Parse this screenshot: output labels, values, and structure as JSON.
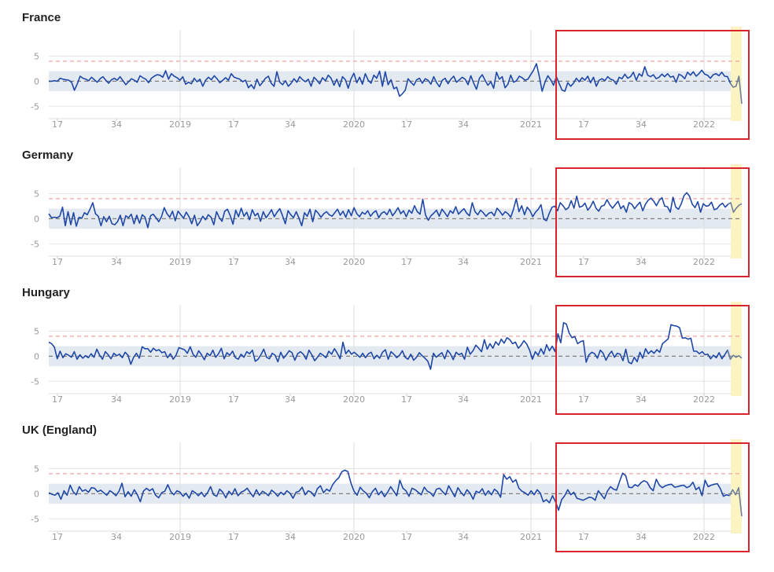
{
  "chart_data": [
    {
      "type": "line",
      "title": "France",
      "yticks": [
        5,
        0,
        -5
      ],
      "ylim": [
        -7,
        9
      ],
      "xticks": [
        "17",
        "34",
        "2019",
        "17",
        "34",
        "2020",
        "17",
        "34",
        "2021",
        "17",
        "34",
        "2022"
      ],
      "threshold_upper": 4,
      "baseline": 0,
      "band": [
        -2,
        2
      ],
      "highlight_color": "#d9232d",
      "series": [
        {
          "values": [
            0,
            0,
            0.1,
            0,
            0.6,
            0.4,
            0.3,
            0.2,
            -0.2,
            -1.8,
            -0.5,
            1,
            0.6,
            0.4,
            0.1,
            0.8,
            0.3,
            -0.2,
            0.5,
            0.9,
            0.2,
            -0.4,
            0.3,
            0.6,
            0.2,
            0.9,
            0.1,
            -0.7,
            -0.1,
            0.5,
            0.2,
            -0.2,
            1.1,
            0.7,
            0.4,
            -0.3,
            0.6,
            1,
            1.3,
            1.2,
            0.8,
            2.1,
            0.4,
            1.5,
            1,
            0.7,
            0.2,
            0.9,
            -0.6,
            -0.2,
            -0.5,
            0.6,
            -0.1,
            0.4,
            -1,
            0.2,
            0.8,
            0.3,
            1.1,
            0.5,
            -0.3,
            0.2,
            0.7,
            0.2,
            1.5,
            0.8,
            0.6,
            0.4,
            -0.1,
            0.2,
            -1.3,
            -0.7,
            -1.5,
            0.4,
            -0.9,
            -0.2,
            0.6,
            1,
            -0.4,
            -1,
            1.9,
            -0.2,
            -0.7,
            0.1,
            -1,
            -0.4,
            0.5,
            -0.2,
            0.9,
            0.3,
            -0.1,
            0.4,
            -1,
            0.8,
            0.2,
            -0.5,
            0.7,
            0.1,
            1.2,
            0.6,
            -0.8,
            0.4,
            -1.1,
            0.9,
            0.3,
            -1.4,
            0.5,
            1.6,
            -0.3,
            0.8,
            -0.6,
            1.5,
            0.2,
            -0.4,
            1.2,
            0.6,
            2,
            -1,
            1.9,
            -0.7,
            0.3,
            -1.5,
            -1.2,
            -3,
            -2.5,
            -1.8,
            0.5,
            -0.2,
            -0.8,
            0.3,
            0.6,
            -0.4,
            0.5,
            0.2,
            -0.6,
            0.9,
            -0.3,
            -1.1,
            0.2,
            0.6,
            -0.5,
            0.4,
            1,
            -0.2,
            0.3,
            0.8,
            0.4,
            -0.7,
            1.1,
            -0.4,
            -1.6,
            0.6,
            1.3,
            0.2,
            -0.8,
            -0.1,
            -1.4,
            1.8,
            0.4,
            0.9,
            -1.3,
            -0.6,
            1.2,
            -0.2,
            0.1,
            1,
            0.7,
            0.2,
            0.4,
            1.3,
            2.2,
            3.5,
            1,
            -2,
            -0.2,
            1.1,
            0.3,
            -0.8,
            0.9,
            -0.5,
            -1.8,
            -2,
            -0.3,
            -1,
            -0.4,
            0.6,
            -0.1,
            0.7,
            0.2,
            1,
            -0.3,
            0.8,
            -1,
            0.2,
            0.5,
            0.1,
            0.9,
            0.4,
            0.2,
            -0.6,
            0.8,
            0.5,
            1.4,
            0.6,
            0.9,
            1.8,
            0.2,
            1.5,
            1,
            2.9,
            1.2,
            0.9,
            1.3,
            0.5,
            0.8,
            1.4,
            0.9,
            1.5,
            0.8,
            1,
            -0.2,
            1.4,
            1.1,
            0.5,
            1.8,
            1.2,
            1.9,
            1,
            1.5,
            2.2,
            1.4,
            1.2,
            0.6,
            1.3,
            1.5,
            1.1,
            1.8,
            1,
            0.9,
            -0.4,
            -1.2,
            -1,
            1,
            -4.5
          ]
        }
      ]
    },
    {
      "type": "line",
      "title": "Germany",
      "yticks": [
        5,
        0,
        -5
      ],
      "ylim": [
        -7,
        9
      ],
      "xticks": [
        "17",
        "34",
        "2019",
        "17",
        "34",
        "2020",
        "17",
        "34",
        "2021",
        "17",
        "34",
        "2022"
      ],
      "threshold_upper": 4,
      "baseline": 0,
      "band": [
        -2,
        2
      ],
      "highlight_color": "#d9232d",
      "series": [
        {
          "values": [
            1,
            0.2,
            0.3,
            0.2,
            0.5,
            2.3,
            -1.4,
            1.4,
            -1.2,
            1.2,
            -1.5,
            0.3,
            0.1,
            1.2,
            0.8,
            1.9,
            3.2,
            1,
            0.5,
            -1.4,
            0.4,
            -0.6,
            0.5,
            -1,
            -1.2,
            -0.6,
            0.7,
            -1.4,
            0.6,
            0.2,
            0.9,
            -1,
            0.7,
            -0.9,
            0.8,
            0.3,
            -1.8,
            0.6,
            0.9,
            0.2,
            -0.6,
            0.4,
            2.2,
            1,
            0.3,
            1.5,
            -0.4,
            1.5,
            0.8,
            0.1,
            1.3,
            0.4,
            -1,
            0.7,
            -1.4,
            -0.6,
            0.5,
            -0.2,
            0.8,
            0.3,
            -1.2,
            1.4,
            0.2,
            -0.5,
            1.5,
            1.9,
            0.6,
            -1.1,
            1.7,
            0.4,
            2.1,
            0.5,
            1.3,
            -0.2,
            1.8,
            0.6,
            1.1,
            -0.5,
            1.4,
            0.2,
            0.9,
            1.8,
            0.4,
            1.3,
            2,
            0.6,
            -1,
            1.6,
            0.8,
            0.2,
            1.4,
            0.1,
            -1.4,
            1.2,
            0.5,
            1.9,
            -0.6,
            1.7,
            1.1,
            0.3,
            1,
            1.4,
            0.8,
            0.5,
            1.2,
            1.9,
            0.7,
            1.5,
            0.3,
            1.8,
            0.6,
            2.2,
            1,
            0.4,
            1.3,
            0.9,
            1.6,
            0.5,
            1.2,
            1.6,
            0.2,
            1.1,
            1.4,
            0.8,
            1.9,
            0.6,
            1.3,
            2.2,
            1,
            1.6,
            0.4,
            1.7,
            1.1,
            2.6,
            1.4,
            0.9,
            3.9,
            0.7,
            -0.3,
            0.6,
            1.1,
            1.7,
            0.5,
            1.9,
            1.2,
            0.4,
            1.6,
            1.1,
            2.4,
            0.9,
            1.5,
            2,
            1.1,
            0.6,
            3.2,
            1.4,
            0.8,
            1.7,
            1.2,
            0.5,
            1.1,
            1.3,
            0.6,
            2.1,
            1.5,
            0.7,
            1.4,
            1,
            0.3,
            1.9,
            4,
            1.4,
            2.6,
            0.8,
            2.3,
            1.6,
            0.4,
            1.3,
            1.9,
            2.8,
            -0.1,
            -0.4,
            1.1,
            2.3,
            2.5,
            1.6,
            3.2,
            2.6,
            1.8,
            2.2,
            3.6,
            2.1,
            4.5,
            2.3,
            2.5,
            3.1,
            1.7,
            2.4,
            3.5,
            2.1,
            1.5,
            2.5,
            2.7,
            3.8,
            2.8,
            2.1,
            2.8,
            3.5,
            2,
            2.6,
            1.3,
            3.2,
            2.9,
            2,
            2.7,
            3.3,
            1.6,
            2.9,
            3.7,
            4.1,
            3.5,
            2.6,
            3.7,
            4.2,
            2.5,
            2.4,
            1.3,
            4.3,
            2.3,
            1.9,
            3,
            4.6,
            5.2,
            4.5,
            2.9,
            2.2,
            3.4,
            1.3,
            3,
            2.5,
            2.6,
            3.3,
            1.8,
            2,
            2.7,
            3.1,
            2.3,
            2.9,
            3.2,
            1.3,
            2.1,
            2.7,
            3
          ]
        }
      ]
    },
    {
      "type": "line",
      "title": "Hungary",
      "yticks": [
        5,
        0,
        -5
      ],
      "ylim": [
        -7,
        9
      ],
      "xticks": [
        "17",
        "34",
        "2019",
        "17",
        "34",
        "2020",
        "17",
        "34",
        "2021",
        "17",
        "34",
        "2022"
      ],
      "threshold_upper": 4,
      "baseline": 0,
      "band": [
        -2,
        2
      ],
      "highlight_color": "#d9232d",
      "series": [
        {
          "values": [
            2.8,
            2.5,
            1.8,
            -0.5,
            1,
            -0.3,
            0.5,
            0.2,
            -0.2,
            0.9,
            -0.6,
            0.3,
            -0.4,
            0.1,
            -0.3,
            0.5,
            -0.2,
            1.4,
            0.2,
            -0.6,
            0.9,
            0.3,
            -0.5,
            0.6,
            0.1,
            0.4,
            -0.3,
            0.8,
            0.2,
            -1.6,
            -0.2,
            0.6,
            -0.4,
            1.9,
            1.5,
            1.5,
            0.8,
            1.6,
            1.1,
            1.3,
            0.7,
            0.9,
            -0.3,
            0.5,
            -0.6,
            0.2,
            1.7,
            1.5,
            1.3,
            0.6,
            1.9,
            0.4,
            -0.2,
            1.1,
            0.3,
            -0.7,
            0.6,
            0.1,
            1.2,
            -0.2,
            0.5,
            1.6,
            -0.5,
            0.7,
            0.2,
            1,
            -0.3,
            -0.6,
            0.4,
            -0.2,
            0.9,
            0.5,
            1.2,
            -1,
            -0.6,
            0.3,
            1.4,
            -0.2,
            -0.5,
            0.6,
            0.2,
            -1.1,
            0.8,
            -0.4,
            0.3,
            1.1,
            0.7,
            -0.8,
            0.5,
            0.9,
            0.4,
            -0.6,
            1.2,
            0.3,
            -0.9,
            -0.2,
            0.6,
            0.2,
            -0.3,
            1,
            0.4,
            1.5,
            0.6,
            -0.5,
            2.8,
            0.5,
            1.2,
            0.4,
            0.8,
            0.3,
            -0.2,
            0.6,
            -0.3,
            0.5,
            0.8,
            -0.5,
            0.2,
            -0.4,
            0.8,
            1.3,
            -0.6,
            0.9,
            0.4,
            -0.3,
            0.2,
            1.1,
            -0.2,
            -0.6,
            0.4,
            -0.8,
            -0.2,
            0.7,
            0.1,
            -0.4,
            -1,
            -2.6,
            0.6,
            -0.2,
            0.3,
            0.7,
            -0.5,
            1.2,
            0.5,
            -0.7,
            0.8,
            0.3,
            0.6,
            -0.6,
            1.8,
            0.4,
            1.1,
            2.2,
            1.6,
            0.9,
            3.3,
            1.4,
            2.5,
            1.6,
            2.9,
            2.2,
            3.4,
            2.6,
            3.7,
            3.3,
            2.5,
            2.8,
            1.6,
            2.2,
            3.1,
            2.4,
            1.2,
            -0.6,
            0.9,
            0.2,
            1.5,
            0.4,
            2.3,
            1.1,
            2,
            0.9,
            4.5,
            2.7,
            6.7,
            6.4,
            4.6,
            3.7,
            3.9,
            2.5,
            2.9,
            3.1,
            -1.2,
            0.3,
            0.8,
            0.5,
            -0.4,
            1.2,
            0.6,
            -0.8,
            0.3,
            1,
            -0.2,
            0.6,
            0.4,
            -0.9,
            1.4,
            -1.2,
            -1.5,
            -0.2,
            -1.1,
            0.8,
            -0.4,
            1.5,
            0.5,
            1.1,
            0.6,
            1.3,
            0.8,
            2.5,
            3,
            3.5,
            6.3,
            6.1,
            6,
            5.7,
            3.6,
            3.7,
            3.4,
            3.6,
            1,
            1,
            0.5,
            0.9,
            0.3,
            0.4,
            -0.5,
            0.2,
            -0.3,
            0.7,
            -0.5,
            0.3,
            1.2,
            -0.6,
            0.2,
            -0.2,
            0.1,
            -0.4
          ]
        }
      ]
    },
    {
      "type": "line",
      "title": "UK (England)",
      "yticks": [
        5,
        0,
        -5
      ],
      "ylim": [
        -7,
        9
      ],
      "xticks": [
        "17",
        "34",
        "2019",
        "17",
        "34",
        "2020",
        "17",
        "34",
        "2021",
        "17",
        "34",
        "2022"
      ],
      "threshold_upper": 4,
      "baseline": 0,
      "band": [
        -2,
        2
      ],
      "highlight_color": "#d9232d",
      "series": [
        {
          "values": [
            0.2,
            -0.1,
            -0.3,
            0.2,
            -1.1,
            0.6,
            -0.3,
            1.7,
            0.4,
            -0.2,
            1.4,
            0.5,
            0.8,
            0.3,
            1.2,
            1.1,
            0.4,
            0.7,
            0.2,
            -0.3,
            0.6,
            0.2,
            -0.4,
            0.5,
            2.1,
            -0.6,
            0.4,
            -0.5,
            0.8,
            -0.2,
            -1.6,
            0.5,
            1.1,
            0.6,
            1,
            -0.3,
            -0.8,
            0.2,
            0.5,
            1.8,
            0.4,
            -0.2,
            0.6,
            0.3,
            -0.5,
            0.1,
            -0.9,
            0.6,
            0.2,
            -0.4,
            0.3,
            -0.6,
            0.2,
            1.4,
            -0.2,
            -0.5,
            0.9,
            0.3,
            -0.8,
            0.5,
            -0.2,
            1,
            -0.4,
            0.3,
            0.6,
            1.1,
            0.2,
            -0.6,
            0.8,
            -0.3,
            0.5,
            0.1,
            -0.4,
            0.7,
            0.2,
            -0.5,
            0.3,
            -0.2,
            0.6,
            0.1,
            -0.9,
            0.3,
            0.5,
            1.3,
            -0.2,
            0.6,
            0.3,
            -0.5,
            1,
            1.6,
            0.2,
            0.9,
            0.5,
            1.8,
            2.6,
            3.2,
            4.4,
            4.7,
            4.4,
            2.1,
            0.5,
            -0.3,
            1.3,
            0.6,
            0.1,
            -0.8,
            0.4,
            1.1,
            -0.2,
            0.5,
            -0.6,
            0.3,
            1.4,
            0.5,
            -0.4,
            2.7,
            1.1,
            0.6,
            -0.5,
            1.1,
            0.8,
            0.3,
            -0.2,
            1.3,
            0.5,
            0.2,
            -0.5,
            0.9,
            1.1,
            0.4,
            -0.2,
            1.6,
            0.5,
            -0.6,
            1.2,
            0.3,
            -0.4,
            0.8,
            0.1,
            -1.1,
            0.5,
            0.2,
            1,
            -0.3,
            0.6,
            -0.2,
            0.9,
            0.4,
            -0.7,
            3.8,
            2.9,
            3.4,
            2.3,
            2.8,
            1.1,
            0.5,
            0.2,
            -0.3,
            0.6,
            -0.2,
            0.8,
            0.1,
            -1.6,
            -1.2,
            -1.8,
            -0.4,
            -1.6,
            -3.3,
            -1.2,
            -0.4,
            0.8,
            -0.2,
            0.3,
            -0.9,
            -1.1,
            -1.3,
            -1,
            -0.7,
            -0.8,
            -1.3,
            0.6,
            -0.2,
            -1,
            0.5,
            1.4,
            0.9,
            0.7,
            2.5,
            4.1,
            3.6,
            1.3,
            1.2,
            1.8,
            1.5,
            2.2,
            2.6,
            2.3,
            1.2,
            0.6,
            2.9,
            1.7,
            1.2,
            1.6,
            1.8,
            1.9,
            1.3,
            1.4,
            1.6,
            1.7,
            1.2,
            1.5,
            2.3,
            0.8,
            1.3,
            -0.4,
            2.7,
            1.4,
            1.7,
            1.9,
            2,
            1,
            -0.5,
            -0.2,
            -0.4,
            0.8,
            -0.2,
            1.2,
            -4.5
          ]
        }
      ]
    }
  ]
}
